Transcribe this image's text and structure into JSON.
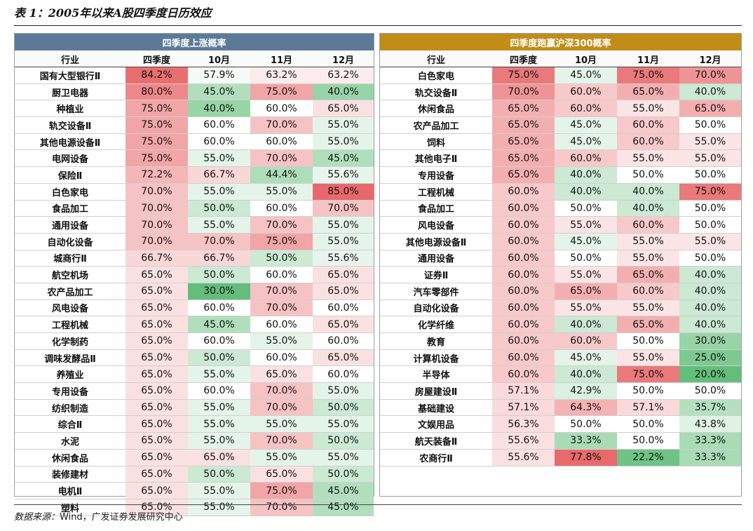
{
  "title": "表 1：2005年以来A股四季度日历效应",
  "source": {
    "label": "数据来源：",
    "text": "Wind，广发证券发展研究中心"
  },
  "palette": {
    "high": "#e8696b",
    "low": "#63be7b",
    "mid": "#ffffff"
  },
  "left_table": {
    "group_header": "四季度上涨概率",
    "columns": [
      "行业",
      "四季度",
      "10月",
      "11月",
      "12月"
    ],
    "color_scale": {
      "min": 30,
      "mid": 60,
      "max": 85
    },
    "rows": [
      [
        "国有大型银行Ⅱ",
        "84.2%",
        "57.9%",
        "63.2%",
        "63.2%"
      ],
      [
        "厨卫电器",
        "80.0%",
        "45.0%",
        "75.0%",
        "40.0%"
      ],
      [
        "种植业",
        "75.0%",
        "40.0%",
        "60.0%",
        "65.0%"
      ],
      [
        "轨交设备Ⅱ",
        "75.0%",
        "60.0%",
        "70.0%",
        "55.0%"
      ],
      [
        "其他电源设备Ⅱ",
        "75.0%",
        "60.0%",
        "60.0%",
        "55.0%"
      ],
      [
        "电网设备",
        "75.0%",
        "55.0%",
        "70.0%",
        "45.0%"
      ],
      [
        "保险Ⅱ",
        "72.2%",
        "66.7%",
        "44.4%",
        "55.6%"
      ],
      [
        "白色家电",
        "70.0%",
        "55.0%",
        "55.0%",
        "85.0%"
      ],
      [
        "食品加工",
        "70.0%",
        "50.0%",
        "60.0%",
        "70.0%"
      ],
      [
        "通用设备",
        "70.0%",
        "55.0%",
        "70.0%",
        "55.0%"
      ],
      [
        "自动化设备",
        "70.0%",
        "70.0%",
        "75.0%",
        "55.0%"
      ],
      [
        "城商行Ⅱ",
        "66.7%",
        "66.7%",
        "50.0%",
        "55.6%"
      ],
      [
        "航空机场",
        "65.0%",
        "50.0%",
        "60.0%",
        "65.0%"
      ],
      [
        "农产品加工",
        "65.0%",
        "30.0%",
        "70.0%",
        "65.0%"
      ],
      [
        "风电设备",
        "65.0%",
        "60.0%",
        "70.0%",
        "60.0%"
      ],
      [
        "工程机械",
        "65.0%",
        "45.0%",
        "60.0%",
        "65.0%"
      ],
      [
        "化学制药",
        "65.0%",
        "60.0%",
        "55.0%",
        "60.0%"
      ],
      [
        "调味发酵品Ⅱ",
        "65.0%",
        "50.0%",
        "60.0%",
        "65.0%"
      ],
      [
        "养殖业",
        "65.0%",
        "55.0%",
        "65.0%",
        "60.0%"
      ],
      [
        "专用设备",
        "65.0%",
        "60.0%",
        "70.0%",
        "55.0%"
      ],
      [
        "纺织制造",
        "65.0%",
        "55.0%",
        "70.0%",
        "50.0%"
      ],
      [
        "综合Ⅱ",
        "65.0%",
        "55.0%",
        "55.0%",
        "55.0%"
      ],
      [
        "水泥",
        "65.0%",
        "55.0%",
        "70.0%",
        "50.0%"
      ],
      [
        "休闲食品",
        "65.0%",
        "65.0%",
        "55.0%",
        "55.0%"
      ],
      [
        "装修建材",
        "65.0%",
        "50.0%",
        "65.0%",
        "50.0%"
      ],
      [
        "电机Ⅱ",
        "65.0%",
        "55.0%",
        "75.0%",
        "45.0%"
      ],
      [
        "塑料",
        "65.0%",
        "55.0%",
        "70.0%",
        "45.0%"
      ]
    ]
  },
  "right_table": {
    "group_header": "四季度跑赢沪深300概率",
    "columns": [
      "行业",
      "四季度",
      "10月",
      "11月",
      "12月"
    ],
    "color_scale": {
      "min": 20,
      "mid": 50,
      "max": 78
    },
    "rows": [
      [
        "白色家电",
        "75.0%",
        "45.0%",
        "75.0%",
        "70.0%"
      ],
      [
        "轨交设备Ⅱ",
        "70.0%",
        "60.0%",
        "65.0%",
        "40.0%"
      ],
      [
        "休闲食品",
        "65.0%",
        "60.0%",
        "55.0%",
        "65.0%"
      ],
      [
        "农产品加工",
        "65.0%",
        "45.0%",
        "60.0%",
        "50.0%"
      ],
      [
        "饲料",
        "65.0%",
        "45.0%",
        "60.0%",
        "55.0%"
      ],
      [
        "其他电子Ⅱ",
        "65.0%",
        "60.0%",
        "55.0%",
        "55.0%"
      ],
      [
        "专用设备",
        "65.0%",
        "40.0%",
        "50.0%",
        "50.0%"
      ],
      [
        "工程机械",
        "60.0%",
        "40.0%",
        "40.0%",
        "75.0%"
      ],
      [
        "食品加工",
        "60.0%",
        "50.0%",
        "40.0%",
        "50.0%"
      ],
      [
        "风电设备",
        "60.0%",
        "55.0%",
        "60.0%",
        "50.0%"
      ],
      [
        "其他电源设备Ⅱ",
        "60.0%",
        "45.0%",
        "55.0%",
        "55.0%"
      ],
      [
        "通用设备",
        "60.0%",
        "50.0%",
        "55.0%",
        "50.0%"
      ],
      [
        "证券Ⅱ",
        "60.0%",
        "55.0%",
        "65.0%",
        "40.0%"
      ],
      [
        "汽车零部件",
        "60.0%",
        "65.0%",
        "60.0%",
        "40.0%"
      ],
      [
        "自动化设备",
        "60.0%",
        "55.0%",
        "55.0%",
        "40.0%"
      ],
      [
        "化学纤维",
        "60.0%",
        "40.0%",
        "65.0%",
        "40.0%"
      ],
      [
        "教育",
        "60.0%",
        "60.0%",
        "50.0%",
        "30.0%"
      ],
      [
        "计算机设备",
        "60.0%",
        "45.0%",
        "55.0%",
        "25.0%"
      ],
      [
        "半导体",
        "60.0%",
        "40.0%",
        "75.0%",
        "20.0%"
      ],
      [
        "房屋建设Ⅱ",
        "57.1%",
        "42.9%",
        "50.0%",
        "50.0%"
      ],
      [
        "基础建设",
        "57.1%",
        "64.3%",
        "57.1%",
        "35.7%"
      ],
      [
        "文娱用品",
        "56.3%",
        "50.0%",
        "50.0%",
        "43.8%"
      ],
      [
        "航天装备Ⅱ",
        "55.6%",
        "33.3%",
        "50.0%",
        "33.3%"
      ],
      [
        "农商行Ⅱ",
        "55.6%",
        "77.8%",
        "22.2%",
        "33.3%"
      ]
    ]
  }
}
